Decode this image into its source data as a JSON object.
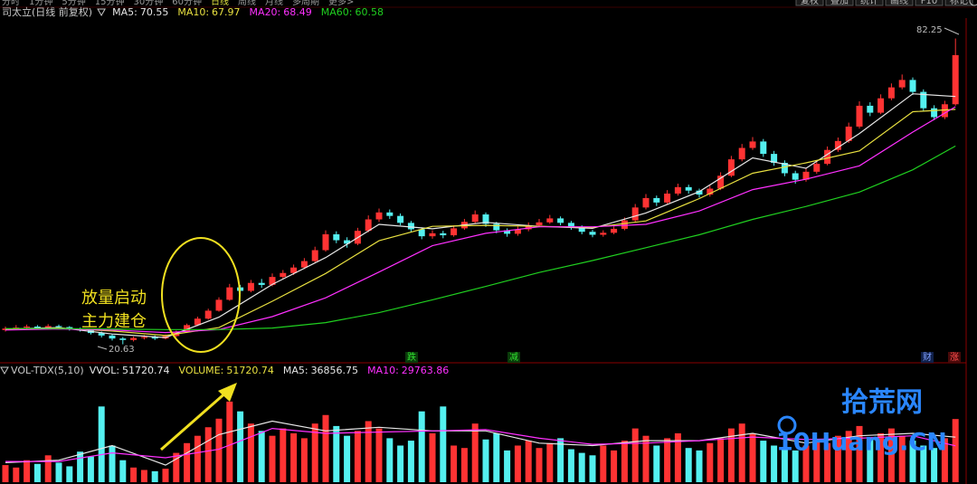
{
  "menu": [
    "分时",
    "1分钟",
    "5分钟",
    "15分钟",
    "30分钟",
    "60分钟",
    "日线",
    "周线",
    "月线",
    "多周期",
    "更多>"
  ],
  "toolbar": [
    "复权",
    "叠加",
    "统计",
    "画线",
    "F10",
    "标记"
  ],
  "watermark": {
    "title": "拾荒网",
    "url": "10Huang.CN"
  },
  "chart_data": [
    {
      "type": "candlestick",
      "title": "司太立(日线 前复权)",
      "open": [
        23.5,
        23.8,
        24.0,
        24.2,
        23.9,
        24.3,
        24.1,
        23.7,
        23.5,
        22.9,
        22.4,
        21.8,
        21.5,
        21.9,
        22.1,
        21.8,
        22.3,
        23.1,
        24.5,
        25.8,
        27.4,
        29.6,
        32.1,
        31.4,
        33.0,
        32.6,
        34.2,
        35.0,
        36.1,
        37.4,
        39.6,
        42.8,
        41.6,
        40.9,
        43.5,
        45.8,
        47.2,
        46.5,
        45.1,
        43.8,
        42.4,
        43.0,
        42.6,
        44.0,
        45.3,
        46.8,
        44.9,
        43.6,
        42.9,
        43.8,
        44.6,
        45.2,
        46.0,
        45.1,
        44.2,
        43.3,
        42.7,
        43.1,
        43.9,
        45.6,
        48.2,
        50.1,
        49.2,
        51.0,
        52.3,
        51.6,
        50.8,
        52.0,
        54.6,
        57.9,
        60.2,
        61.5,
        59.0,
        57.2,
        55.1,
        53.8,
        55.4,
        57.0,
        59.8,
        61.6,
        64.5,
        68.7,
        67.3,
        70.2,
        72.4,
        73.9,
        71.5,
        68.2,
        66.4,
        69.0
      ],
      "high": [
        24.2,
        24.5,
        24.6,
        24.5,
        24.7,
        24.6,
        24.3,
        24.0,
        23.8,
        23.2,
        22.7,
        22.1,
        22.2,
        22.5,
        22.4,
        22.6,
        23.4,
        24.8,
        26.2,
        27.8,
        30.1,
        32.8,
        32.6,
        33.6,
        33.8,
        34.9,
        35.6,
        36.7,
        38.0,
        40.3,
        43.6,
        43.4,
        42.2,
        44.1,
        46.6,
        48.0,
        47.8,
        47.0,
        45.5,
        44.2,
        43.6,
        43.5,
        44.6,
        45.9,
        47.6,
        47.2,
        45.3,
        44.0,
        44.4,
        45.2,
        45.9,
        46.7,
        46.4,
        45.5,
        44.6,
        43.7,
        43.6,
        44.4,
        46.2,
        48.9,
        50.9,
        50.6,
        51.7,
        53.0,
        52.8,
        52.0,
        52.6,
        55.3,
        58.6,
        61.0,
        62.4,
        62.0,
        59.6,
        57.7,
        55.6,
        56.0,
        57.6,
        60.5,
        62.3,
        65.3,
        69.6,
        69.4,
        71.0,
        73.2,
        75.0,
        74.4,
        72.0,
        68.8,
        69.7,
        82.25
      ],
      "low": [
        23.2,
        23.5,
        23.7,
        23.6,
        23.6,
        23.8,
        23.4,
        23.2,
        22.6,
        22.0,
        21.4,
        20.63,
        21.2,
        21.6,
        21.5,
        21.6,
        22.1,
        22.9,
        24.3,
        25.6,
        27.2,
        29.4,
        30.8,
        31.1,
        32.0,
        32.3,
        33.8,
        34.6,
        35.8,
        37.1,
        39.3,
        41.0,
        40.1,
        40.6,
        43.2,
        45.3,
        45.9,
        44.6,
        43.2,
        41.8,
        41.9,
        42.0,
        42.3,
        43.7,
        45.0,
        44.3,
        43.0,
        42.3,
        42.5,
        43.4,
        44.2,
        44.9,
        44.6,
        43.7,
        42.8,
        42.2,
        42.3,
        42.8,
        43.6,
        45.3,
        47.8,
        48.5,
        48.9,
        50.6,
        51.0,
        50.2,
        50.4,
        51.7,
        54.3,
        57.5,
        59.8,
        58.4,
        56.6,
        54.5,
        53.0,
        53.4,
        55.0,
        56.7,
        59.4,
        61.2,
        64.1,
        66.6,
        67.0,
        69.8,
        72.0,
        70.9,
        67.5,
        65.8,
        66.0,
        68.7
      ],
      "close": [
        23.8,
        24.0,
        24.2,
        23.9,
        24.3,
        24.1,
        23.7,
        23.5,
        22.9,
        22.4,
        21.8,
        21.5,
        21.9,
        22.1,
        21.8,
        22.3,
        23.1,
        24.5,
        25.8,
        27.4,
        29.6,
        32.1,
        31.4,
        33.0,
        32.6,
        34.2,
        35.0,
        36.1,
        37.4,
        39.6,
        42.8,
        41.6,
        40.9,
        43.5,
        45.8,
        47.2,
        46.5,
        45.1,
        43.8,
        42.4,
        43.0,
        42.6,
        44.0,
        45.3,
        46.8,
        44.9,
        43.6,
        42.9,
        43.8,
        44.6,
        45.2,
        46.0,
        45.1,
        44.2,
        43.3,
        42.7,
        43.1,
        43.9,
        45.6,
        48.2,
        50.1,
        49.2,
        51.0,
        52.3,
        51.6,
        50.8,
        52.0,
        54.6,
        57.9,
        60.2,
        61.5,
        59.0,
        57.2,
        55.1,
        53.8,
        55.4,
        57.0,
        59.8,
        61.6,
        64.5,
        68.7,
        67.3,
        70.2,
        72.4,
        73.9,
        71.5,
        68.2,
        66.4,
        69.0,
        78.9
      ],
      "up_color": "#ff3333",
      "down_color": "#54f0f0",
      "ylim": [
        18,
        86
      ],
      "ma_x": [
        0,
        5,
        10,
        15,
        20,
        25,
        30,
        35,
        40,
        45,
        50,
        55,
        60,
        65,
        70,
        75,
        80,
        85,
        89
      ],
      "series": [
        {
          "name": "MA5:",
          "color": "#e6e6e6",
          "values": [
            23.7,
            24.0,
            22.7,
            22.0,
            26.1,
            32.7,
            38.1,
            44.8,
            43.9,
            45.2,
            44.4,
            44.0,
            47.1,
            51.4,
            58.2,
            56.1,
            63.1,
            71.1,
            70.55
          ]
        },
        {
          "name": "MA10:",
          "color": "#e8e040",
          "values": [
            23.6,
            23.9,
            23.3,
            22.4,
            24.0,
            29.3,
            34.9,
            41.5,
            44.4,
            44.6,
            44.4,
            44.2,
            45.5,
            50.0,
            55.1,
            57.2,
            59.6,
            67.5,
            67.97
          ]
        },
        {
          "name": "MA20:",
          "color": "#ff30ff",
          "values": [
            23.5,
            23.7,
            23.5,
            23.0,
            23.6,
            26.2,
            30.0,
            35.2,
            40.5,
            43.0,
            44.3,
            44.3,
            44.8,
            47.5,
            51.8,
            53.9,
            56.6,
            63.4,
            68.49
          ]
        },
        {
          "name": "MA60:",
          "color": "#20d020",
          "values": [
            23.8,
            23.8,
            23.7,
            23.6,
            23.6,
            23.9,
            25.0,
            27.0,
            29.6,
            32.3,
            35.1,
            37.5,
            40.1,
            42.7,
            45.8,
            48.4,
            51.3,
            55.8,
            60.58
          ]
        }
      ],
      "annotations": [
        "放量启动",
        "主力建仓"
      ],
      "markers": [
        "跌",
        "减",
        "财",
        "涨"
      ]
    },
    {
      "type": "bar",
      "title": "VOL-TDX(5,10)",
      "value_names": [
        "VVOL:",
        "VOLUME:"
      ],
      "values": [
        14000,
        12000,
        18000,
        15000,
        22000,
        16000,
        13000,
        25000,
        21000,
        62000,
        30000,
        18000,
        12000,
        10000,
        9000,
        11000,
        24000,
        32000,
        38000,
        45000,
        52000,
        66000,
        58000,
        48000,
        42000,
        38000,
        44000,
        40000,
        36000,
        48000,
        55000,
        46000,
        38000,
        42000,
        50000,
        44000,
        36000,
        30000,
        34000,
        58000,
        40000,
        62000,
        30000,
        28000,
        48000,
        35000,
        40000,
        26000,
        30000,
        34000,
        28000,
        32000,
        36000,
        27000,
        24000,
        22000,
        30000,
        26000,
        34000,
        44000,
        38000,
        30000,
        36000,
        40000,
        28000,
        26000,
        32000,
        36000,
        44000,
        48000,
        40000,
        34000,
        30000,
        28000,
        26000,
        30000,
        34000,
        32000,
        38000,
        42000,
        46000,
        36000,
        40000,
        44000,
        38000,
        34000,
        30000,
        28000,
        36000,
        51720.74
      ],
      "ylim": [
        0,
        80000
      ],
      "series": [
        {
          "name": "MA5:",
          "color": "#e6e6e6",
          "values": [
            16000,
            18000,
            30000,
            14000,
            39000,
            50000,
            42000,
            45000,
            42000,
            42000,
            32000,
            30000,
            34000,
            34000,
            40000,
            32000,
            38000,
            40000,
            36856.75
          ]
        },
        {
          "name": "MA10:",
          "color": "#ff30ff",
          "values": [
            17000,
            17000,
            24000,
            20000,
            27000,
            44000,
            40000,
            41000,
            42000,
            43000,
            36000,
            31000,
            32000,
            34000,
            37000,
            35000,
            36000,
            38000,
            29763.86
          ]
        }
      ]
    }
  ]
}
